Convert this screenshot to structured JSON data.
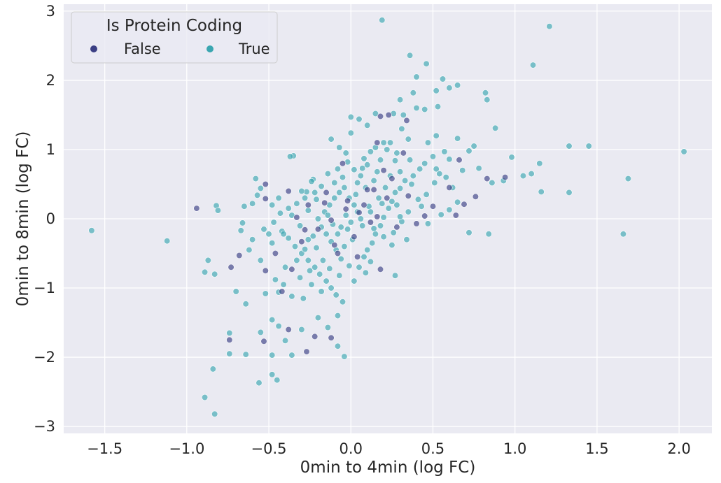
{
  "chart_data": {
    "type": "scatter",
    "xlabel": "0min to 4min (log FC)",
    "ylabel": "0min to 8min (log FC)",
    "xlim": [
      -1.75,
      2.2
    ],
    "ylim": [
      -3.1,
      3.1
    ],
    "xticks": [
      -1.5,
      -1.0,
      -0.5,
      0.0,
      0.5,
      1.0,
      1.5,
      2.0
    ],
    "xtick_labels": [
      "−1.5",
      "−1.0",
      "−0.5",
      "0.0",
      "0.5",
      "1.0",
      "1.5",
      "2.0"
    ],
    "yticks": [
      -3,
      -2,
      -1,
      0,
      1,
      2,
      3
    ],
    "ytick_labels": [
      "−3",
      "−2",
      "−1",
      "0",
      "1",
      "2",
      "3"
    ],
    "grid": true,
    "legend": {
      "title": "Is Protein Coding",
      "placement": "top-left",
      "entries": [
        {
          "label": "False",
          "color": "#3b3f84"
        },
        {
          "label": "True",
          "color": "#3aa6b0"
        }
      ]
    },
    "series": [
      {
        "label": "False",
        "color": "#3b3f84",
        "points": [
          [
            -0.94,
            0.15
          ],
          [
            -0.52,
            0.5
          ],
          [
            -0.52,
            0.29
          ],
          [
            -0.38,
            0.4
          ],
          [
            -0.33,
            0.02
          ],
          [
            -0.28,
            -0.16
          ],
          [
            -0.26,
            0.2
          ],
          [
            -0.73,
            -0.7
          ],
          [
            -0.68,
            -0.53
          ],
          [
            -0.52,
            -0.75
          ],
          [
            -0.46,
            -0.5
          ],
          [
            -0.36,
            -0.73
          ],
          [
            -0.3,
            -0.33
          ],
          [
            -0.2,
            -0.15
          ],
          [
            -0.15,
            0.38
          ],
          [
            -0.12,
            -0.02
          ],
          [
            -0.05,
            0.8
          ],
          [
            0.02,
            -0.26
          ],
          [
            0.08,
            0.2
          ],
          [
            0.14,
            0.42
          ],
          [
            0.16,
            0.03
          ],
          [
            0.2,
            0.7
          ],
          [
            0.25,
            0.58
          ],
          [
            0.28,
            -0.12
          ],
          [
            0.32,
            0.95
          ],
          [
            0.35,
            0.33
          ],
          [
            0.4,
            -0.07
          ],
          [
            0.45,
            0.04
          ],
          [
            0.5,
            0.18
          ],
          [
            0.16,
            1.1
          ],
          [
            0.18,
            1.48
          ],
          [
            0.23,
            1.5
          ],
          [
            0.34,
            1.42
          ],
          [
            0.18,
            -0.73
          ],
          [
            -0.12,
            -1.72
          ],
          [
            -0.22,
            -1.7
          ],
          [
            -0.27,
            -1.92
          ],
          [
            -0.53,
            -1.77
          ],
          [
            -0.38,
            -1.6
          ],
          [
            -0.74,
            -1.75
          ],
          [
            -0.42,
            -1.05
          ],
          [
            0.64,
            0.05
          ],
          [
            0.76,
            0.32
          ],
          [
            0.83,
            0.58
          ],
          [
            0.94,
            0.6
          ],
          [
            0.6,
            0.45
          ],
          [
            0.66,
            0.85
          ],
          [
            0.69,
            0.21
          ],
          [
            0.04,
            -0.55
          ],
          [
            -0.08,
            -0.5
          ],
          [
            0.1,
            0.42
          ],
          [
            -0.02,
            0.26
          ],
          [
            0.05,
            0.09
          ],
          [
            -0.03,
            0.14
          ],
          [
            0.12,
            -0.05
          ],
          [
            0.22,
            0.3
          ],
          [
            -0.16,
            0.23
          ],
          [
            -0.1,
            -0.38
          ]
        ]
      },
      {
        "label": "True",
        "color": "#3aa6b0",
        "points": [
          [
            -1.58,
            -0.17
          ],
          [
            -1.12,
            -0.32
          ],
          [
            -0.82,
            0.19
          ],
          [
            -0.81,
            0.12
          ],
          [
            -0.65,
            0.18
          ],
          [
            -0.6,
            0.22
          ],
          [
            -0.57,
            0.34
          ],
          [
            -0.55,
            0.44
          ],
          [
            -0.66,
            -0.06
          ],
          [
            -0.67,
            -0.17
          ],
          [
            -0.6,
            -0.3
          ],
          [
            -0.53,
            -0.15
          ],
          [
            -0.58,
            0.58
          ],
          [
            -0.62,
            -0.45
          ],
          [
            -0.48,
            -0.35
          ],
          [
            -0.87,
            -0.6
          ],
          [
            -0.89,
            -0.77
          ],
          [
            -0.83,
            -0.8
          ],
          [
            -0.7,
            -1.05
          ],
          [
            -0.64,
            -1.23
          ],
          [
            -0.52,
            -1.08
          ],
          [
            -0.44,
            -1.06
          ],
          [
            -0.48,
            -1.46
          ],
          [
            -0.74,
            -1.65
          ],
          [
            -0.74,
            -1.95
          ],
          [
            -0.64,
            -1.96
          ],
          [
            -0.55,
            -1.64
          ],
          [
            -0.56,
            -2.37
          ],
          [
            -0.48,
            -2.25
          ],
          [
            -0.45,
            -2.33
          ],
          [
            -0.84,
            -2.17
          ],
          [
            -0.89,
            -2.58
          ],
          [
            -0.83,
            -2.82
          ],
          [
            -0.48,
            -1.97
          ],
          [
            -0.36,
            -1.97
          ],
          [
            -0.4,
            -1.76
          ],
          [
            -0.44,
            -1.55
          ],
          [
            -0.3,
            -1.6
          ],
          [
            -0.14,
            -1.57
          ],
          [
            -0.08,
            -1.84
          ],
          [
            -0.04,
            -1.99
          ],
          [
            -0.2,
            -1.43
          ],
          [
            -0.08,
            -1.4
          ],
          [
            -0.35,
            0.91
          ],
          [
            -0.37,
            0.9
          ],
          [
            -0.23,
            0.57
          ],
          [
            -0.24,
            0.54
          ],
          [
            -0.27,
            0.39
          ],
          [
            -0.14,
            0.65
          ],
          [
            -0.03,
            0.95
          ],
          [
            -0.07,
            1.03
          ],
          [
            -0.12,
            1.15
          ],
          [
            0.0,
            1.24
          ],
          [
            0.05,
            1.44
          ],
          [
            0.0,
            1.47
          ],
          [
            0.1,
            1.35
          ],
          [
            0.15,
            1.52
          ],
          [
            0.19,
            2.87
          ],
          [
            0.36,
            2.36
          ],
          [
            0.38,
            1.82
          ],
          [
            0.4,
            2.05
          ],
          [
            0.46,
            2.24
          ],
          [
            0.52,
            1.85
          ],
          [
            0.56,
            2.02
          ],
          [
            0.6,
            1.89
          ],
          [
            0.65,
            1.93
          ],
          [
            0.53,
            1.62
          ],
          [
            0.45,
            1.58
          ],
          [
            0.4,
            1.6
          ],
          [
            0.32,
            1.5
          ],
          [
            0.26,
            1.52
          ],
          [
            0.3,
            1.72
          ],
          [
            0.35,
            1.15
          ],
          [
            0.47,
            1.1
          ],
          [
            0.52,
            1.2
          ],
          [
            0.57,
            0.97
          ],
          [
            0.6,
            0.86
          ],
          [
            0.54,
            0.65
          ],
          [
            0.51,
            0.52
          ],
          [
            0.65,
            1.16
          ],
          [
            0.72,
            0.98
          ],
          [
            0.75,
            1.05
          ],
          [
            0.68,
            0.7
          ],
          [
            0.78,
            0.73
          ],
          [
            0.82,
            1.82
          ],
          [
            0.83,
            1.72
          ],
          [
            0.88,
            1.31
          ],
          [
            0.98,
            0.89
          ],
          [
            0.93,
            0.55
          ],
          [
            0.86,
            0.52
          ],
          [
            1.05,
            0.62
          ],
          [
            1.1,
            0.65
          ],
          [
            1.15,
            0.8
          ],
          [
            1.16,
            0.39
          ],
          [
            1.11,
            2.22
          ],
          [
            1.21,
            2.78
          ],
          [
            1.33,
            1.05
          ],
          [
            1.45,
            1.05
          ],
          [
            1.33,
            0.38
          ],
          [
            1.66,
            -0.22
          ],
          [
            1.69,
            0.58
          ],
          [
            2.03,
            0.97
          ],
          [
            0.72,
            -0.2
          ],
          [
            0.84,
            -0.22
          ],
          [
            0.65,
            0.24
          ],
          [
            0.6,
            0.13
          ],
          [
            0.55,
            0.06
          ],
          [
            0.47,
            -0.07
          ],
          [
            0.43,
            0.18
          ],
          [
            0.37,
            0.5
          ],
          [
            0.3,
            0.68
          ],
          [
            0.27,
            0.84
          ],
          [
            0.22,
            1.0
          ],
          [
            0.2,
            1.1
          ],
          [
            0.12,
            0.97
          ],
          [
            0.08,
            0.87
          ],
          [
            0.02,
            0.71
          ],
          [
            -0.05,
            0.6
          ],
          [
            -0.1,
            0.52
          ],
          [
            -0.18,
            0.47
          ],
          [
            -0.22,
            0.38
          ],
          [
            -0.28,
            0.3
          ],
          [
            -0.33,
            0.22
          ],
          [
            -0.38,
            0.15
          ],
          [
            -0.43,
            0.08
          ],
          [
            -0.47,
            -0.05
          ],
          [
            -0.42,
            -0.18
          ],
          [
            -0.38,
            -0.28
          ],
          [
            -0.34,
            -0.4
          ],
          [
            -0.3,
            -0.5
          ],
          [
            -0.26,
            -0.6
          ],
          [
            -0.22,
            -0.7
          ],
          [
            -0.19,
            -0.8
          ],
          [
            -0.15,
            -0.9
          ],
          [
            -0.12,
            -1.0
          ],
          [
            -0.09,
            -1.1
          ],
          [
            -0.05,
            -1.2
          ],
          [
            0.02,
            -0.9
          ],
          [
            0.05,
            -0.7
          ],
          [
            0.08,
            -0.55
          ],
          [
            0.1,
            -0.45
          ],
          [
            0.13,
            -0.35
          ],
          [
            0.15,
            -0.22
          ],
          [
            0.18,
            -0.1
          ],
          [
            0.2,
            0.02
          ],
          [
            0.23,
            0.15
          ],
          [
            0.25,
            0.25
          ],
          [
            0.27,
            0.38
          ],
          [
            0.3,
            0.44
          ],
          [
            0.33,
            0.55
          ],
          [
            0.38,
            0.62
          ],
          [
            0.42,
            0.72
          ],
          [
            0.45,
            0.8
          ],
          [
            0.5,
            0.9
          ],
          [
            0.28,
            0.2
          ],
          [
            0.31,
            -0.04
          ],
          [
            0.35,
            0.1
          ],
          [
            0.2,
            -0.26
          ],
          [
            0.25,
            -0.38
          ],
          [
            0.12,
            -0.62
          ],
          [
            0.09,
            -0.78
          ],
          [
            -0.01,
            -0.68
          ],
          [
            -0.06,
            -0.58
          ],
          [
            -0.09,
            -0.45
          ],
          [
            -0.12,
            -0.33
          ],
          [
            -0.15,
            -0.22
          ],
          [
            -0.18,
            -0.12
          ],
          [
            -0.2,
            0.0
          ],
          [
            -0.16,
            0.1
          ],
          [
            -0.13,
            0.2
          ],
          [
            -0.1,
            0.3
          ],
          [
            -0.07,
            0.38
          ],
          [
            -0.04,
            0.45
          ],
          [
            -0.01,
            0.3
          ],
          [
            0.02,
            0.2
          ],
          [
            0.04,
            0.1
          ],
          [
            0.06,
            0.0
          ],
          [
            0.07,
            -0.1
          ],
          [
            0.0,
            -0.05
          ],
          [
            -0.03,
            0.05
          ],
          [
            -0.06,
            -0.12
          ],
          [
            -0.08,
            -0.22
          ],
          [
            -0.11,
            -0.08
          ],
          [
            -0.14,
            0.05
          ],
          [
            0.03,
            0.35
          ],
          [
            0.09,
            0.45
          ],
          [
            0.14,
            0.55
          ],
          [
            0.17,
            0.3
          ],
          [
            0.11,
            0.18
          ],
          [
            0.01,
            -0.3
          ],
          [
            -0.04,
            -0.4
          ],
          [
            -0.24,
            -0.95
          ],
          [
            -0.31,
            -0.85
          ],
          [
            -0.36,
            -1.12
          ],
          [
            -0.41,
            -0.95
          ],
          [
            -0.29,
            -1.15
          ],
          [
            -0.18,
            -1.05
          ],
          [
            -0.26,
            -0.3
          ],
          [
            -0.31,
            -0.1
          ],
          [
            -0.36,
            0.05
          ],
          [
            -0.41,
            -0.22
          ],
          [
            0.36,
            0.85
          ],
          [
            0.41,
            0.28
          ],
          [
            0.46,
            0.35
          ],
          [
            0.52,
            0.72
          ],
          [
            0.58,
            0.6
          ],
          [
            0.62,
            0.45
          ],
          [
            0.28,
            0.95
          ],
          [
            0.24,
            1.1
          ],
          [
            0.1,
            0.78
          ],
          [
            0.06,
            0.62
          ],
          [
            0.16,
            0.68
          ],
          [
            0.21,
            0.45
          ],
          [
            0.26,
            -0.2
          ],
          [
            0.34,
            -0.3
          ],
          [
            0.3,
            0.03
          ],
          [
            -0.17,
            -0.6
          ],
          [
            -0.21,
            -0.42
          ],
          [
            -0.25,
            -0.75
          ],
          [
            -0.13,
            -0.72
          ],
          [
            -0.07,
            -0.82
          ],
          [
            -0.02,
            -0.15
          ],
          [
            0.04,
            0.52
          ],
          [
            0.12,
            0.1
          ],
          [
            0.14,
            -0.14
          ],
          [
            0.19,
            0.22
          ],
          [
            -0.21,
            0.28
          ],
          [
            -0.26,
            0.12
          ],
          [
            -0.3,
            0.4
          ],
          [
            -0.44,
            0.3
          ],
          [
            -0.48,
            0.2
          ],
          [
            -0.5,
            -0.22
          ],
          [
            -0.55,
            -0.6
          ],
          [
            -0.46,
            -0.88
          ],
          [
            -0.4,
            -0.7
          ],
          [
            -0.33,
            -0.6
          ],
          [
            -0.28,
            -0.44
          ],
          [
            -0.23,
            -0.25
          ],
          [
            0.27,
            -0.82
          ],
          [
            0.24,
            0.62
          ],
          [
            0.18,
            0.85
          ],
          [
            0.07,
            0.73
          ],
          [
            -0.02,
            0.82
          ],
          [
            -0.08,
            0.72
          ],
          [
            0.15,
            1.03
          ],
          [
            0.31,
            1.3
          ]
        ]
      }
    ]
  }
}
